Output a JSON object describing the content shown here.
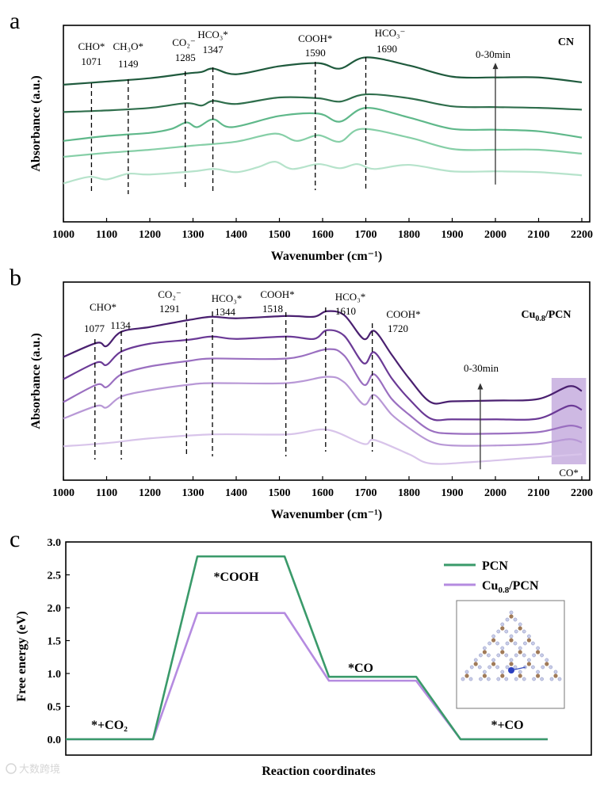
{
  "panel_labels": {
    "a": "a",
    "b": "b",
    "c": "c"
  },
  "watermark": "大数跨境",
  "chart_data": [
    {
      "type": "line",
      "panel": "a",
      "title": "CN",
      "xlabel": "Wavenumber (cm⁻¹)",
      "ylabel": "Absorbance (a.u.)",
      "xlim": [
        1000,
        2220
      ],
      "ylim": [
        0,
        10
      ],
      "xticks": [
        1000,
        1100,
        1200,
        1300,
        1400,
        1500,
        1600,
        1700,
        1800,
        1900,
        2000,
        2100,
        2200
      ],
      "arrow": {
        "label": "0-30min",
        "x": 2000,
        "from": 1.9,
        "to": 8.1
      },
      "annotations": [
        {
          "species": "CHO*",
          "wavenumber": "1071",
          "x": 1065
        },
        {
          "species": "CH₃O*",
          "wavenumber": "1149",
          "x": 1150
        },
        {
          "species": "CO₂⁻",
          "wavenumber": "1285",
          "x": 1282
        },
        {
          "species": "HCO₃*",
          "wavenumber": "1347",
          "x": 1346
        },
        {
          "species": "COOH*",
          "wavenumber": "1590",
          "x": 1583
        },
        {
          "species": "HCO₃⁻",
          "wavenumber": "1690",
          "x": 1700
        }
      ],
      "series": [
        {
          "color": "#1f5a3d",
          "x": [
            1000,
            1100,
            1200,
            1285,
            1320,
            1347,
            1400,
            1500,
            1590,
            1640,
            1700,
            1800,
            1900,
            2000,
            2100,
            2200
          ],
          "y": [
            6.98,
            7.14,
            7.31,
            7.55,
            7.63,
            7.8,
            7.51,
            7.92,
            8.08,
            7.8,
            8.37,
            7.96,
            7.39,
            7.35,
            7.35,
            7.1
          ]
        },
        {
          "color": "#2f6e4c",
          "x": [
            1000,
            1100,
            1200,
            1285,
            1320,
            1347,
            1400,
            1500,
            1590,
            1640,
            1700,
            1800,
            1900,
            2000,
            2100,
            2200
          ],
          "y": [
            5.59,
            5.67,
            5.8,
            6.04,
            5.92,
            6.16,
            6.0,
            6.33,
            6.29,
            6.12,
            6.49,
            6.29,
            5.88,
            5.84,
            5.8,
            5.71
          ]
        },
        {
          "color": "#5fb88a",
          "x": [
            1000,
            1100,
            1200,
            1250,
            1285,
            1310,
            1347,
            1390,
            1500,
            1590,
            1640,
            1700,
            1800,
            1900,
            2000,
            2100,
            2200
          ],
          "y": [
            4.12,
            4.37,
            4.53,
            4.73,
            5.06,
            4.82,
            5.22,
            4.82,
            5.39,
            5.51,
            5.1,
            5.8,
            5.31,
            4.73,
            4.69,
            4.61,
            4.29
          ]
        },
        {
          "color": "#86cfa7",
          "x": [
            1000,
            1100,
            1200,
            1300,
            1400,
            1490,
            1540,
            1590,
            1640,
            1690,
            1800,
            1900,
            2000,
            2100,
            2200
          ],
          "y": [
            3.31,
            3.51,
            3.67,
            3.88,
            4.08,
            4.49,
            4.12,
            4.41,
            4.08,
            4.73,
            4.29,
            3.71,
            3.67,
            3.67,
            3.47
          ]
        },
        {
          "color": "#b6e3cb",
          "x": [
            1000,
            1060,
            1100,
            1150,
            1200,
            1300,
            1350,
            1400,
            1450,
            1490,
            1530,
            1590,
            1640,
            1680,
            1720,
            1800,
            1900,
            2000,
            2100,
            2200
          ],
          "y": [
            1.96,
            2.29,
            2.16,
            2.45,
            2.41,
            2.57,
            2.69,
            2.53,
            2.78,
            3.06,
            2.69,
            2.94,
            2.73,
            2.94,
            2.69,
            2.9,
            2.57,
            2.57,
            2.53,
            2.37
          ]
        }
      ]
    },
    {
      "type": "line",
      "panel": "b",
      "title_parts": [
        "Cu",
        "0.8",
        "/PCN"
      ],
      "xlabel": "Wavenumber (cm⁻¹)",
      "ylabel": "Absorbance (a.u.)",
      "xlim": [
        1000,
        2220
      ],
      "ylim": [
        0,
        10
      ],
      "xticks": [
        1000,
        1100,
        1200,
        1300,
        1400,
        1500,
        1600,
        1700,
        1800,
        1900,
        2000,
        2100,
        2200
      ],
      "arrow": {
        "label": "0-30min",
        "x": 1965,
        "from": 0.55,
        "to": 4.9
      },
      "highlight": {
        "label": "CO*",
        "x_range": [
          2130,
          2210
        ],
        "color": "#a57fcc"
      },
      "annotations": [
        {
          "species": "CHO*",
          "wavenumber": "1077",
          "x": 1073
        },
        {
          "species": "",
          "wavenumber": "1134",
          "x": 1134
        },
        {
          "species": "CO₂⁻",
          "wavenumber": "1291",
          "x": 1285
        },
        {
          "species": "HCO₃*",
          "wavenumber": "1344",
          "x": 1345
        },
        {
          "species": "COOH*",
          "wavenumber": "1518",
          "x": 1515
        },
        {
          "species": "HCO₃*",
          "wavenumber": "1610",
          "x": 1607
        },
        {
          "species": "COOH*",
          "wavenumber": "1720",
          "x": 1715
        }
      ],
      "series": [
        {
          "color": "#4a2070",
          "x": [
            1000,
            1077,
            1100,
            1134,
            1200,
            1291,
            1344,
            1400,
            1518,
            1580,
            1610,
            1650,
            1695,
            1720,
            1760,
            1800,
            1850,
            1900,
            2000,
            2100,
            2170,
            2200
          ],
          "y": [
            6.22,
            6.93,
            6.77,
            7.49,
            7.73,
            8.09,
            8.25,
            8.17,
            8.29,
            8.25,
            8.53,
            8.33,
            7.13,
            7.53,
            6.33,
            5.14,
            3.94,
            3.98,
            4.02,
            4.1,
            4.74,
            4.5
          ]
        },
        {
          "color": "#6b3a96",
          "x": [
            1000,
            1077,
            1100,
            1134,
            1200,
            1291,
            1344,
            1400,
            1518,
            1580,
            1610,
            1650,
            1695,
            1720,
            1760,
            1800,
            1850,
            1900,
            2000,
            2100,
            2170,
            2200
          ],
          "y": [
            5.1,
            5.94,
            5.82,
            6.49,
            6.89,
            7.09,
            7.25,
            7.13,
            7.25,
            7.13,
            7.57,
            7.29,
            5.9,
            6.45,
            5.14,
            4.1,
            3.11,
            3.07,
            3.07,
            3.11,
            3.75,
            3.55
          ]
        },
        {
          "color": "#9a6fc0",
          "x": [
            1000,
            1077,
            1100,
            1134,
            1200,
            1291,
            1344,
            1518,
            1610,
            1650,
            1695,
            1720,
            1760,
            1800,
            1850,
            1900,
            2000,
            2100,
            2170,
            2200
          ],
          "y": [
            3.94,
            4.82,
            4.7,
            5.34,
            5.74,
            6.02,
            6.14,
            6.14,
            6.61,
            6.29,
            4.82,
            5.34,
            4.1,
            3.31,
            2.51,
            2.35,
            2.35,
            2.43,
            2.75,
            2.63
          ]
        },
        {
          "color": "#b898d6",
          "x": [
            1000,
            1077,
            1100,
            1134,
            1200,
            1291,
            1344,
            1518,
            1610,
            1650,
            1695,
            1720,
            1760,
            1800,
            1850,
            1900,
            2000,
            2100,
            2170,
            2200
          ],
          "y": [
            3.11,
            3.75,
            3.67,
            4.22,
            4.54,
            4.82,
            4.9,
            4.9,
            5.22,
            4.94,
            3.82,
            4.3,
            3.31,
            2.63,
            1.95,
            1.75,
            1.75,
            1.83,
            2.07,
            1.91
          ]
        },
        {
          "color": "#d8c4ea",
          "x": [
            1000,
            1100,
            1200,
            1344,
            1518,
            1610,
            1695,
            1720,
            1800,
            1850,
            1950,
            2100,
            2200
          ],
          "y": [
            1.71,
            1.87,
            2.11,
            2.31,
            2.31,
            2.55,
            1.83,
            2.03,
            1.31,
            0.84,
            0.92,
            1.16,
            1.31
          ]
        }
      ]
    },
    {
      "type": "line",
      "panel": "c",
      "xlabel": "Reaction coordinates",
      "ylabel": "Free energy (eV)",
      "ylim": [
        0,
        3.0
      ],
      "yticks": [
        "0.0",
        "0.5",
        "1.0",
        "1.5",
        "2.0",
        "2.5",
        "3.0"
      ],
      "steps": [
        "*+CO₂",
        "*COOH",
        "*CO",
        "*+CO"
      ],
      "series": [
        {
          "name": "PCN",
          "color": "#3a9a6a",
          "values": [
            0,
            2.78,
            0.95,
            0
          ]
        },
        {
          "name_parts": [
            "Cu",
            "0.8",
            "/PCN"
          ],
          "color": "#b58be0",
          "values": [
            0,
            1.92,
            0.89,
            0
          ]
        }
      ]
    }
  ]
}
